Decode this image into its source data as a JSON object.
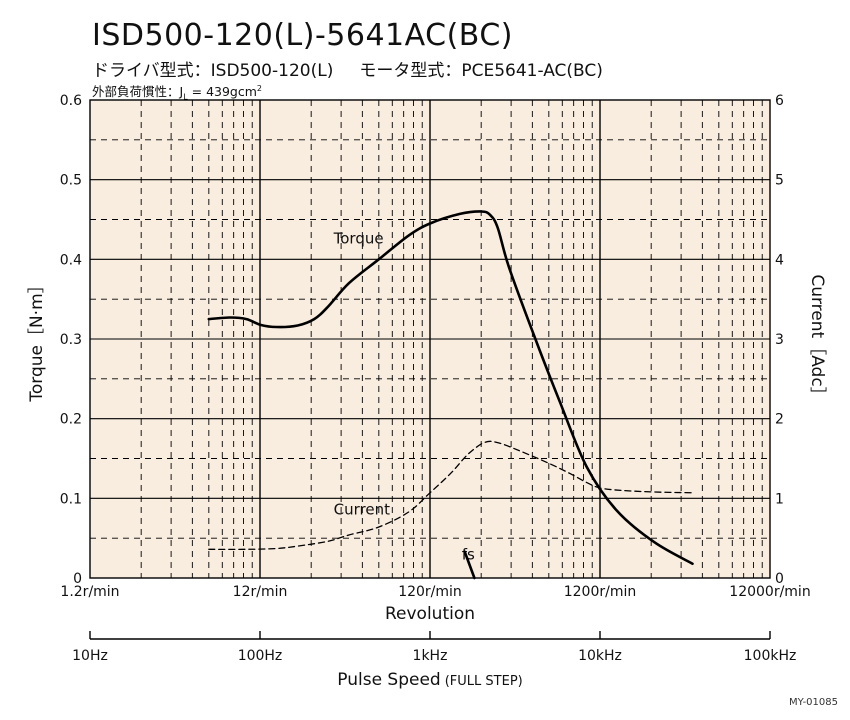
{
  "header": {
    "title": "ISD500-120(L)-5641AC(BC)",
    "driver_label": "ドライバ型式：ISD500-120(L)",
    "motor_label": "モータ型式：PCE5641-AC(BC)",
    "load_label": "外部負荷慣性：J",
    "load_sub": "L",
    "load_value": " = 439gcm",
    "load_sup": "2"
  },
  "figure_id": "MY-01085",
  "colors": {
    "plot_bg": "#f9eddf",
    "line": "#000000"
  },
  "chart_data": {
    "type": "line",
    "x_scale": "log",
    "x_unit": "r/min",
    "xlim": [
      1.2,
      12000
    ],
    "xlabel": "Revolution",
    "x_ticks": [
      "1.2r/min",
      "12r/min",
      "120r/min",
      "1200r/min",
      "12000r/min"
    ],
    "x2_ticks": [
      "10Hz",
      "100Hz",
      "1kHz",
      "10kHz",
      "100kHz"
    ],
    "x2label": "Pulse Speed",
    "x2label_note": "(FULL STEP)",
    "ylabel": "Torque［N·m］",
    "ylim": [
      0,
      0.6
    ],
    "y_ticks": [
      "0",
      "0.1",
      "0.2",
      "0.3",
      "0.4",
      "0.5",
      "0.6"
    ],
    "y2label": "Current［Adc］",
    "y2lim": [
      0,
      6
    ],
    "y2_ticks": [
      "0",
      "1",
      "2",
      "3",
      "4",
      "5",
      "6"
    ],
    "grid": true,
    "series": [
      {
        "name": "Torque",
        "axis": "left",
        "style": "solid",
        "x": [
          6,
          8,
          10,
          12,
          15,
          20,
          25,
          30,
          40,
          60,
          90,
          120,
          180,
          240,
          270,
          300,
          350,
          500,
          700,
          1000,
          1500,
          2500,
          4200
        ],
        "y": [
          0.325,
          0.327,
          0.325,
          0.318,
          0.315,
          0.317,
          0.325,
          0.34,
          0.37,
          0.4,
          0.43,
          0.445,
          0.457,
          0.46,
          0.456,
          0.44,
          0.39,
          0.3,
          0.22,
          0.14,
          0.085,
          0.045,
          0.018
        ]
      },
      {
        "name": "Current",
        "axis": "right",
        "style": "dashed",
        "x": [
          6,
          10,
          15,
          20,
          30,
          40,
          60,
          90,
          120,
          160,
          200,
          250,
          300,
          400,
          600,
          800,
          1000,
          1200,
          1600,
          2500,
          4200
        ],
        "y": [
          0.36,
          0.36,
          0.37,
          0.4,
          0.46,
          0.54,
          0.64,
          0.83,
          1.07,
          1.32,
          1.55,
          1.7,
          1.7,
          1.6,
          1.44,
          1.31,
          1.2,
          1.13,
          1.1,
          1.08,
          1.07
        ]
      }
    ],
    "annotations": [
      {
        "text": "Torque",
        "x": 30,
        "y": 0.42
      },
      {
        "text": "Current",
        "x": 30,
        "y": 0.08
      },
      {
        "text": "fs",
        "x": 170,
        "y": 0.023,
        "marker_x": [
          192,
          219
        ],
        "marker_y": [
          0.033,
          0.0
        ]
      }
    ]
  }
}
